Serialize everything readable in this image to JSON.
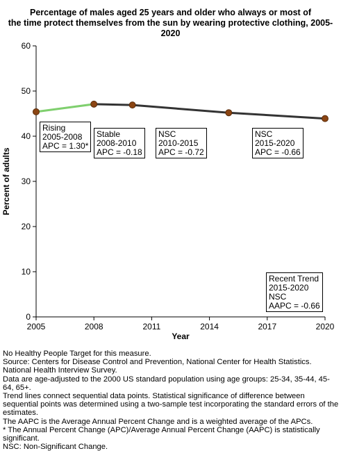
{
  "title_line1": "Percentage of males aged 25 years and older who always or most of",
  "title_line2": "the time protect themselves from the sun by wearing protective clothing, 2005-2020",
  "chart_data": {
    "type": "line",
    "xlabel": "Year",
    "ylabel": "Percent of adults",
    "xlim": [
      2005,
      2020
    ],
    "ylim": [
      0,
      60
    ],
    "xticks": [
      2005,
      2008,
      2011,
      2014,
      2017,
      2020
    ],
    "yticks": [
      0,
      10,
      20,
      30,
      40,
      50,
      60
    ],
    "grid": false,
    "points": [
      {
        "x": 2005,
        "y": 45.4
      },
      {
        "x": 2008,
        "y": 47.1
      },
      {
        "x": 2010,
        "y": 46.9
      },
      {
        "x": 2015,
        "y": 45.2
      },
      {
        "x": 2020,
        "y": 43.9
      }
    ],
    "trend_segments": [
      {
        "from": 2005,
        "to": 2008,
        "color": "#7fcf6e",
        "lines": [
          "Rising",
          "2005-2008",
          "APC =  1.30*"
        ]
      },
      {
        "from": 2008,
        "to": 2010,
        "color": "#333333",
        "lines": [
          "Stable",
          "2008-2010",
          "APC = -0.18"
        ]
      },
      {
        "from": 2010,
        "to": 2015,
        "color": "#333333",
        "lines": [
          "NSC",
          "2010-2015",
          "APC = -0.72"
        ]
      },
      {
        "from": 2015,
        "to": 2020,
        "color": "#333333",
        "lines": [
          "NSC",
          "2015-2020",
          "APC = -0.66"
        ]
      }
    ],
    "recent_trend": {
      "lines": [
        "Recent Trend",
        "2015-2020",
        "NSC",
        "AAPC = -0.66"
      ]
    },
    "marker_color": "#8b4513"
  },
  "notes": [
    "No Healthy People Target for this measure.",
    "Source: Centers for Disease Control and Prevention, National Center for Health Statistics. National Health Interview Survey.",
    "Data are age-adjusted to the 2000 US standard population using age groups: 25-34, 35-44, 45-64, 65+.",
    "Trend lines connect sequential data points. Statistical significance of difference between sequential points was determined using a two-sample test incorporating the standard errors of the estimates.",
    "The AAPC is the Average Annual Percent Change and is a weighted average of the APCs.",
    "* The Annual Percent Change (APC)/Average Annual Percent Change (AAPC) is statistically significant.",
    "NSC: Non-Significant Change."
  ]
}
